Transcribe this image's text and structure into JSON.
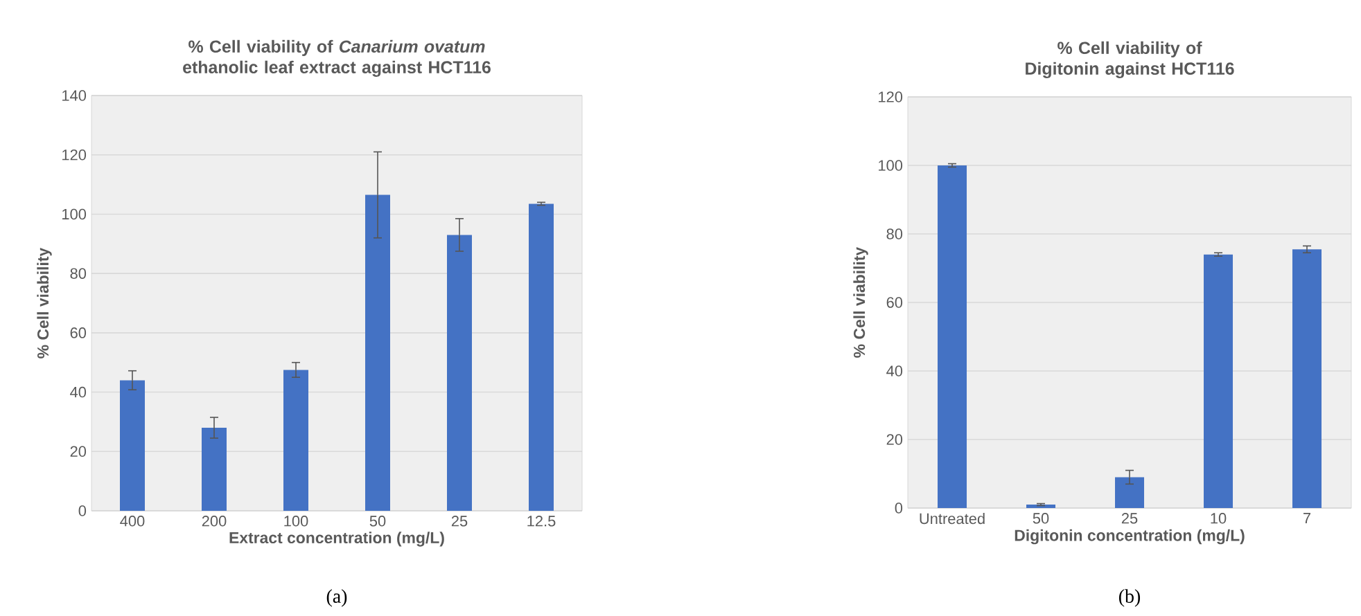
{
  "chart_data": [
    {
      "type": "bar",
      "title": "% Cell viability of *Canarium ovatum* ethanolic leaf extract against HCT116",
      "xlabel": "Extract concentration (mg/L)",
      "ylabel": "% Cell viability",
      "categories": [
        "400",
        "200",
        "100",
        "50",
        "25",
        "12.5"
      ],
      "values": [
        44,
        28,
        47.5,
        106.5,
        93,
        103.5
      ],
      "errors": [
        3.2,
        3.5,
        2.5,
        14.5,
        5.5,
        0.5
      ],
      "color": "#4472c4",
      "ylim": [
        0,
        140
      ],
      "yticks": [
        0,
        20,
        40,
        60,
        80,
        100,
        120,
        140
      ],
      "grid": "y",
      "annotations": [
        "(a)"
      ]
    },
    {
      "type": "bar",
      "title": "% Cell viability of Digitonin against HCT116",
      "xlabel": "Digitonin concentration (mg/L)",
      "ylabel": "% Cell viability",
      "categories": [
        "Untreated",
        "50",
        "25",
        "10",
        "7"
      ],
      "values": [
        100,
        1,
        9,
        74,
        75.5
      ],
      "errors": [
        0.5,
        0.3,
        2,
        0.5,
        1
      ],
      "color": "#4472c4",
      "ylim": [
        0,
        120
      ],
      "yticks": [
        0,
        20,
        40,
        60,
        80,
        100,
        120
      ],
      "grid": "y",
      "annotations": [
        "(b)"
      ]
    }
  ]
}
